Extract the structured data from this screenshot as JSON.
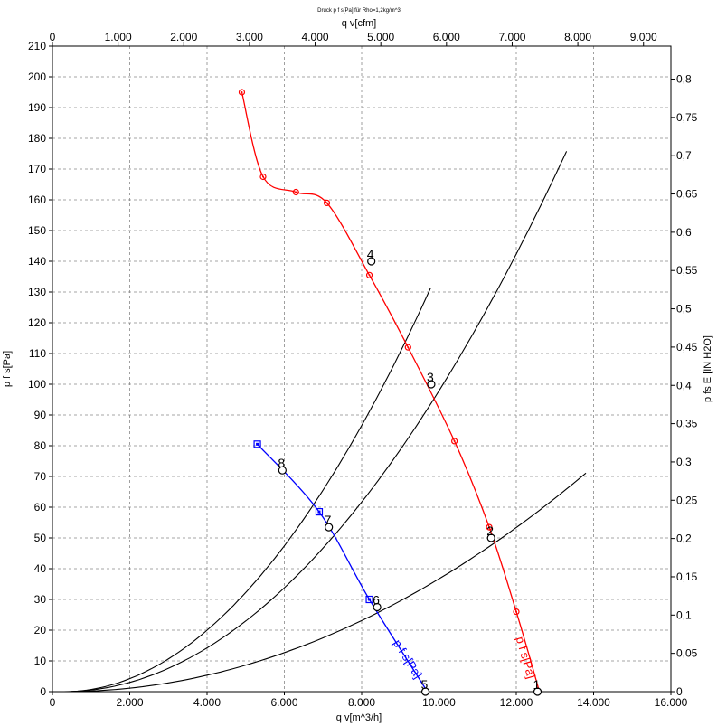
{
  "chart_data": {
    "type": "line",
    "title": "Druck p f s[Pa] für Rho=1,2kg/m^3",
    "xlabel": "q v[m^3/h]",
    "x2label": "q v[cfm]",
    "ylabel": "p f s[Pa]",
    "y2label": "p fs  E [IN H2O]",
    "xlim": [
      0,
      16000
    ],
    "x2lim": [
      0,
      9416.7
    ],
    "ylim": [
      0,
      210
    ],
    "y2lim": [
      0,
      0.8431
    ],
    "x_ticks": [
      0,
      2000,
      4000,
      6000,
      8000,
      10000,
      12000,
      14000,
      16000
    ],
    "x_tick_labels": [
      "0",
      "2.000",
      "4.000",
      "6.000",
      "8.000",
      "10.000",
      "12.000",
      "14.000",
      "16.000"
    ],
    "x2_ticks": [
      0,
      1000,
      2000,
      3000,
      4000,
      5000,
      6000,
      7000,
      8000,
      9000
    ],
    "x2_tick_labels": [
      "0",
      "1.000",
      "2.000",
      "3.000",
      "4.000",
      "5.000",
      "6.000",
      "7.000",
      "8.000",
      "9.000"
    ],
    "y_ticks": [
      0,
      10,
      20,
      30,
      40,
      50,
      60,
      70,
      80,
      90,
      100,
      110,
      120,
      130,
      140,
      150,
      160,
      170,
      180,
      190,
      200,
      210
    ],
    "y_tick_labels": [
      "0",
      "10",
      "20",
      "30",
      "40",
      "50",
      "60",
      "70",
      "80",
      "90",
      "100",
      "110",
      "120",
      "130",
      "140",
      "150",
      "160",
      "170",
      "180",
      "190",
      "200",
      "210"
    ],
    "y2_ticks": [
      0,
      0.05,
      0.1,
      0.15,
      0.2,
      0.25,
      0.3,
      0.35,
      0.4,
      0.45,
      0.5,
      0.55,
      0.6,
      0.65,
      0.7,
      0.75,
      0.8
    ],
    "y2_tick_labels": [
      "0",
      "0,05",
      "0,1",
      "0,15",
      "0,2",
      "0,25",
      "0,3",
      "0,35",
      "0,4",
      "0,45",
      "0,5",
      "0,55",
      "0,6",
      "0,65",
      "0,7",
      "0,75",
      "0,8"
    ],
    "grid": true,
    "series": [
      {
        "name": "p f s[Pa]",
        "color": "#ff0000",
        "marker": "circle",
        "label_x": 12300,
        "label_y": 4,
        "x": [
          4900,
          5450,
          6300,
          7100,
          8200,
          9200,
          10400,
          11300,
          12000,
          12600
        ],
        "y": [
          195,
          167.5,
          162.5,
          159,
          135.5,
          112,
          81.5,
          53.5,
          26,
          0
        ]
      },
      {
        "name": "p f s[Pa]",
        "color": "#0000ff",
        "marker": "square",
        "label_x": 9400,
        "label_y": 4,
        "x": [
          5300,
          6900,
          8200,
          9700
        ],
        "y": [
          80.5,
          58.5,
          30,
          0
        ]
      }
    ],
    "system_curves": [
      {
        "k": 1.46e-06,
        "x_max": 9780,
        "color": "#000000"
      },
      {
        "k": 1.04e-06,
        "x_max": 13300,
        "color": "#000000"
      },
      {
        "k": 3.9e-07,
        "x_max": 13800,
        "color": "#000000"
      }
    ],
    "operating_points": [
      {
        "label": "1",
        "x": 12550,
        "y": 0
      },
      {
        "label": "2",
        "x": 11350,
        "y": 50
      },
      {
        "label": "3",
        "x": 9800,
        "y": 100
      },
      {
        "label": "4",
        "x": 8250,
        "y": 140
      },
      {
        "label": "5",
        "x": 9650,
        "y": 0
      },
      {
        "label": "6",
        "x": 8400,
        "y": 27.5
      },
      {
        "label": "7",
        "x": 7150,
        "y": 53.5
      },
      {
        "label": "8",
        "x": 5950,
        "y": 72
      }
    ]
  }
}
